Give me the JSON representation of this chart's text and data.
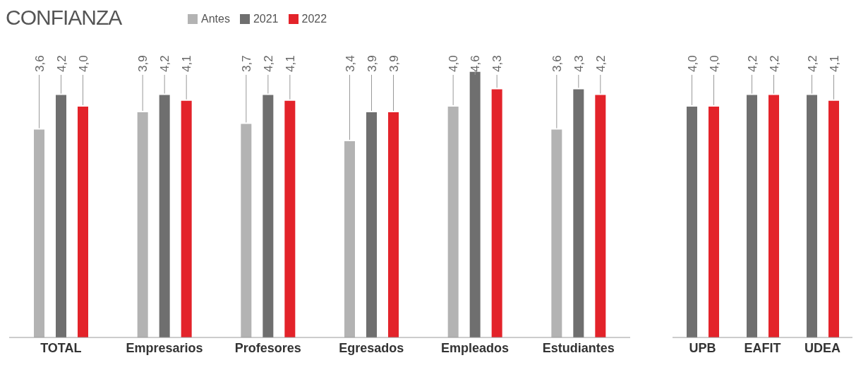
{
  "chart_data": [
    {
      "type": "bar",
      "title": "CONFIANZA",
      "categories": [
        "TOTAL",
        "Empresarios",
        "Profesores",
        "Egresados",
        "Empleados",
        "Estudiantes"
      ],
      "legend": "top",
      "series": [
        {
          "name": "Antes",
          "color": "#b3b3b3",
          "values": [
            3.6,
            3.9,
            3.7,
            3.4,
            4.0,
            3.6
          ],
          "value_labels": [
            "3,6",
            "3,9",
            "3,7",
            "3,4",
            "4,0",
            "3,6"
          ]
        },
        {
          "name": "2021",
          "color": "#6f6f6f",
          "values": [
            4.2,
            4.2,
            4.2,
            3.9,
            4.6,
            4.3
          ],
          "value_labels": [
            "4,2",
            "4,2",
            "4,2",
            "3,9",
            "4,6",
            "4,3"
          ]
        },
        {
          "name": "2022",
          "color": "#e3232a",
          "values": [
            4.0,
            4.1,
            4.1,
            3.9,
            4.3,
            4.2
          ],
          "value_labels": [
            "4,0",
            "4,1",
            "4,1",
            "3,9",
            "4,3",
            "4,2"
          ]
        }
      ]
    },
    {
      "type": "bar",
      "categories": [
        "UPB",
        "EAFIT",
        "UDEA"
      ],
      "series": [
        {
          "name": "2021",
          "color": "#6f6f6f",
          "values": [
            4.0,
            4.2,
            4.2
          ],
          "value_labels": [
            "4,0",
            "4,2",
            "4,2"
          ]
        },
        {
          "name": "2022",
          "color": "#e3232a",
          "values": [
            4.0,
            4.2,
            4.1
          ],
          "value_labels": [
            "4,0",
            "4,2",
            "4,1"
          ]
        }
      ]
    }
  ]
}
